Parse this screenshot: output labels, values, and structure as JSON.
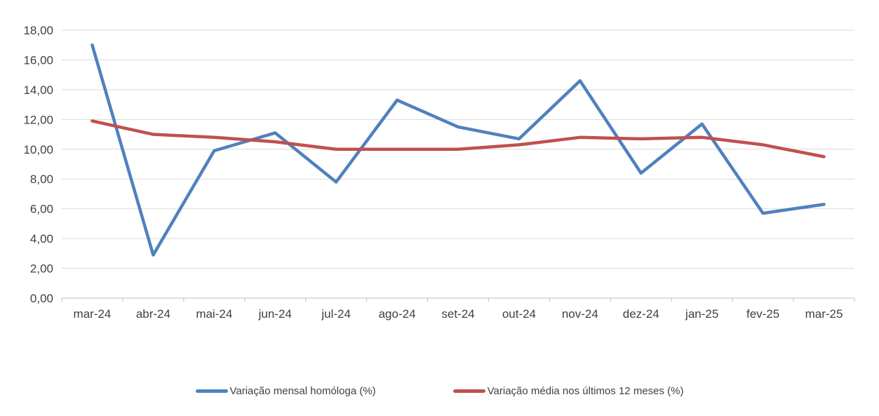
{
  "chart_data": {
    "type": "line",
    "title": "",
    "categories": [
      "mar-24",
      "abr-24",
      "mai-24",
      "jun-24",
      "jul-24",
      "ago-24",
      "set-24",
      "out-24",
      "nov-24",
      "dez-24",
      "jan-25",
      "fev-25",
      "mar-25"
    ],
    "series": [
      {
        "name": "Variação mensal homóloga (%)",
        "color": "#4F81BD",
        "values": [
          17.0,
          2.9,
          9.9,
          11.1,
          7.8,
          13.3,
          11.5,
          10.7,
          14.6,
          8.4,
          11.7,
          5.7,
          6.3
        ]
      },
      {
        "name": "Variação média nos últimos 12 meses (%)",
        "color": "#C0504D",
        "values": [
          11.9,
          11.0,
          10.8,
          10.5,
          10.0,
          10.0,
          10.0,
          10.3,
          10.8,
          10.7,
          10.8,
          10.3,
          9.5
        ]
      }
    ],
    "ylim": [
      0,
      18
    ],
    "y_ticks": [
      0,
      2,
      4,
      6,
      8,
      10,
      12,
      14,
      16,
      18
    ],
    "y_tick_labels": [
      "0,00",
      "2,00",
      "4,00",
      "6,00",
      "8,00",
      "10,00",
      "12,00",
      "14,00",
      "16,00",
      "18,00"
    ],
    "xlabel": "",
    "ylabel": "",
    "grid": true,
    "legend_position": "bottom",
    "gridline_color": "#D9D9D9",
    "axis_color": "#BFBFBF",
    "label_color": "#404040"
  },
  "legend": {
    "items": [
      {
        "label": "Variação mensal homóloga (%)",
        "swatch_color": "#4F81BD"
      },
      {
        "label": "Variação média nos últimos 12 meses (%)",
        "swatch_color": "#C0504D"
      }
    ]
  }
}
